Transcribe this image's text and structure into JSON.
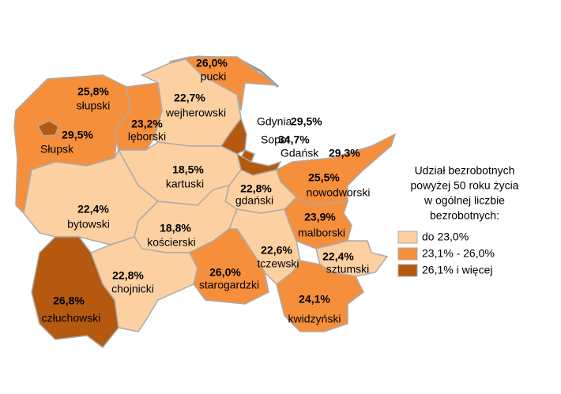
{
  "map": {
    "regions": [
      {
        "name": "pucki",
        "value": 26.0,
        "value_label": "26,0%",
        "class": 1
      },
      {
        "name": "słupski",
        "value": 25.8,
        "value_label": "25,8%",
        "class": 1
      },
      {
        "name": "wejherowski",
        "value": 22.7,
        "value_label": "22,7%",
        "class": 0
      },
      {
        "name": "Słupsk",
        "value": 29.5,
        "value_label": "29,5%",
        "class": 2
      },
      {
        "name": "lęborski",
        "value": 23.2,
        "value_label": "23,2%",
        "class": 1
      },
      {
        "name": "Gdynia",
        "value": 29.5,
        "value_label": "29,5%",
        "class": 2
      },
      {
        "name": "Sopot",
        "value": 34.7,
        "value_label": "34,7%",
        "class": 2
      },
      {
        "name": "Gdańsk",
        "value": 29.3,
        "value_label": "29,3%",
        "class": 2
      },
      {
        "name": "kartuski",
        "value": 18.5,
        "value_label": "18,5%",
        "class": 0
      },
      {
        "name": "nowodworski",
        "value": 25.5,
        "value_label": "25,5%",
        "class": 1
      },
      {
        "name": "gdański",
        "value": 22.8,
        "value_label": "22,8%",
        "class": 0
      },
      {
        "name": "bytowski",
        "value": 22.4,
        "value_label": "22,4%",
        "class": 0
      },
      {
        "name": "kościerski",
        "value": 18.8,
        "value_label": "18,8%",
        "class": 0
      },
      {
        "name": "malborski",
        "value": 23.9,
        "value_label": "23,9%",
        "class": 1
      },
      {
        "name": "tczewski",
        "value": 22.6,
        "value_label": "22,6%",
        "class": 0
      },
      {
        "name": "sztumski",
        "value": 22.4,
        "value_label": "22,4%",
        "class": 0
      },
      {
        "name": "chojnicki",
        "value": 22.8,
        "value_label": "22,8%",
        "class": 0
      },
      {
        "name": "starogardzki",
        "value": 26.0,
        "value_label": "26,0%",
        "class": 1
      },
      {
        "name": "człuchowski",
        "value": 26.8,
        "value_label": "26,8%",
        "class": 2
      },
      {
        "name": "kwidzyński",
        "value": 24.1,
        "value_label": "24,1%",
        "class": 1
      }
    ],
    "legend": {
      "title": [
        "Udział bezrobotnych",
        "powyżej 50 roku życia",
        "w ogólnej liczbie",
        "bezrobotnych:"
      ],
      "classes": [
        {
          "label": "do 23,0%",
          "color": "#fdd0a2"
        },
        {
          "label": "23,1% - 26,0%",
          "color": "#f68f3c"
        },
        {
          "label": "26,1% i więcej",
          "color": "#b4590f"
        }
      ]
    }
  }
}
